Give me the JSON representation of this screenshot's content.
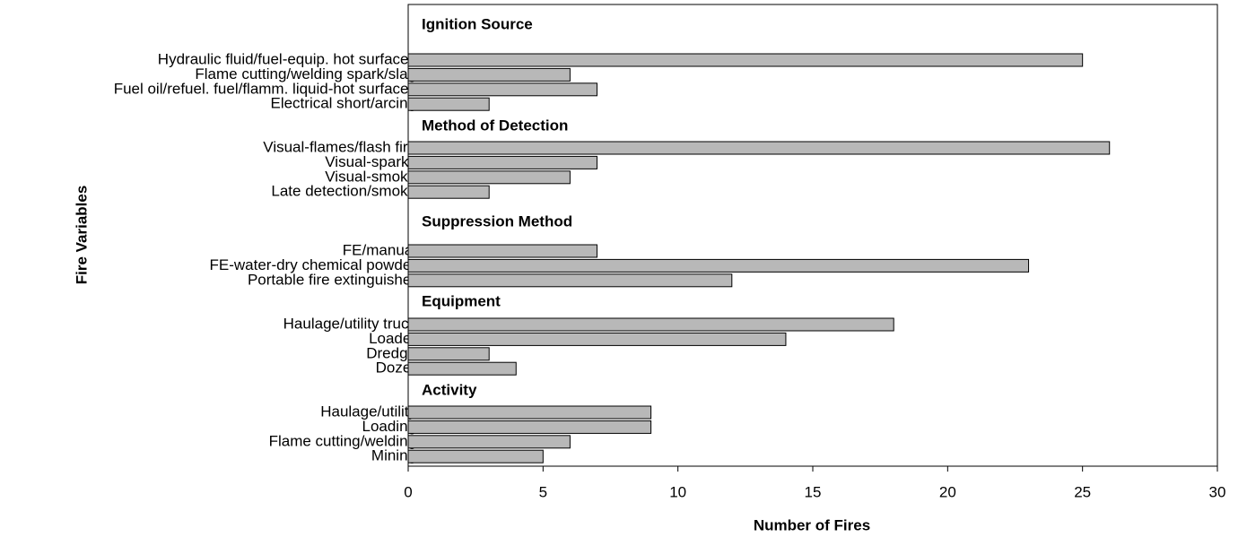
{
  "chart_data": {
    "type": "bar",
    "orientation": "horizontal",
    "x_label": "Number of Fires",
    "y_label": "Fire Variables",
    "color": "#b8b8b8",
    "xlim": [
      0,
      30
    ],
    "xticks": [
      0,
      5,
      10,
      15,
      20,
      25,
      30
    ],
    "grid": false,
    "groups": [
      {
        "name": "Ignition Source",
        "categories": [
          "Hydraulic fluid/fuel-equip. hot surfaces",
          "Flame cutting/welding spark/slag",
          "Fuel oil/refuel. fuel/flamm. liquid-hot surfaces",
          "Electrical short/arcing"
        ],
        "values": [
          25,
          6,
          7,
          3
        ]
      },
      {
        "name": "Method of Detection",
        "categories": [
          "Visual-flames/flash fire",
          "Visual-sparks",
          "Visual-smoke",
          "Late detection/smoke"
        ],
        "values": [
          26,
          7,
          6,
          3
        ]
      },
      {
        "name": "Suppression Method",
        "categories": [
          "FE/manual",
          "FE-water-dry chemical powder",
          "Portable fire extinguisher"
        ],
        "values": [
          7,
          23,
          12
        ]
      },
      {
        "name": "Equipment",
        "categories": [
          "Haulage/utility truck",
          "Loader",
          "Dredge",
          "Dozer"
        ],
        "values": [
          18,
          14,
          3,
          4
        ]
      },
      {
        "name": "Activity",
        "categories": [
          "Haulage/utility",
          "Loading",
          "Flame cutting/welding",
          "Mining"
        ],
        "values": [
          9,
          9,
          6,
          5
        ]
      }
    ]
  }
}
